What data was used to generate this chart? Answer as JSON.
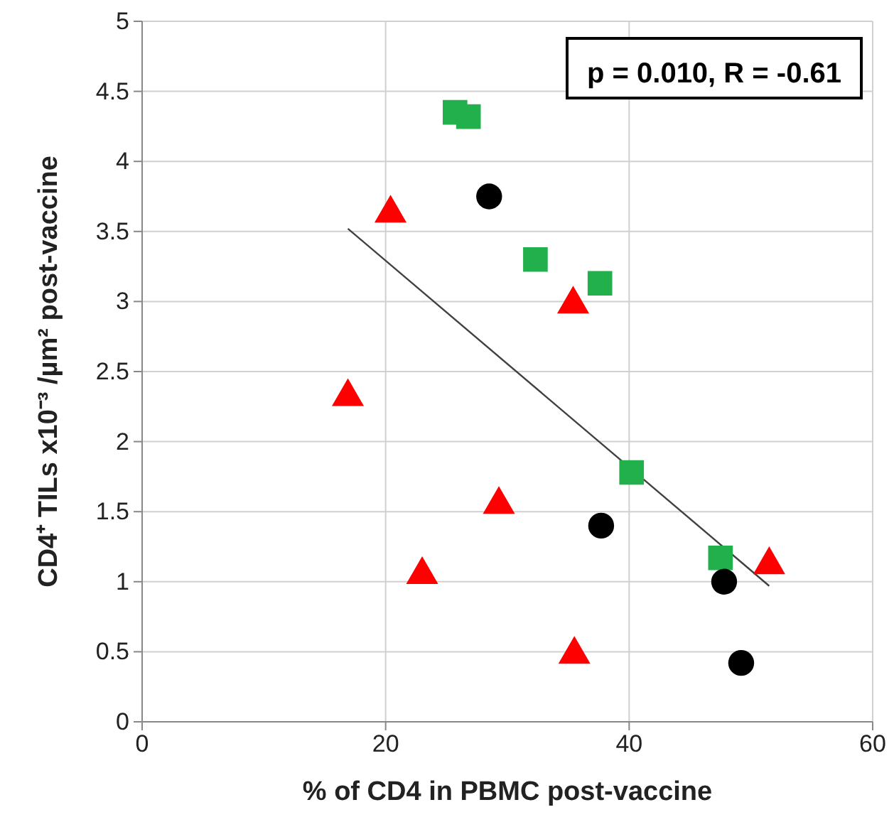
{
  "chart_data": {
    "type": "scatter",
    "xlabel": "% of CD4 in PBMC post-vaccine",
    "ylabel": "CD4⁺ TILs x10⁻³ /µm² post-vaccine",
    "annotations": [
      "p = 0.010, R = -0.61"
    ],
    "xlim": [
      0,
      60
    ],
    "xticks": [
      0,
      20,
      40,
      60
    ],
    "ylim": [
      0,
      5
    ],
    "yticks": [
      0,
      0.5,
      1,
      1.5,
      2,
      2.5,
      3,
      3.5,
      4,
      4.5,
      5
    ],
    "grid": true,
    "series": [
      {
        "type": "line",
        "color": "#404040",
        "marker": "none",
        "x": [
          16.9,
          51.5
        ],
        "values": [
          3.52,
          0.97
        ]
      },
      {
        "color": "#21b04b",
        "marker": "square",
        "x": [
          25.7,
          26.8,
          32.3,
          37.6,
          40.2,
          47.5
        ],
        "values": [
          4.35,
          4.32,
          3.3,
          3.13,
          1.78,
          1.17
        ]
      },
      {
        "color": "#000000",
        "marker": "circle",
        "x": [
          28.5,
          37.7,
          47.8,
          49.2
        ],
        "values": [
          3.75,
          1.4,
          1.0,
          0.42
        ]
      },
      {
        "color": "#ff0000",
        "marker": "triangle",
        "x": [
          20.4,
          16.9,
          35.4,
          29.3,
          23.0,
          35.5,
          51.5
        ],
        "values": [
          3.63,
          2.32,
          2.98,
          1.55,
          1.05,
          0.48,
          1.12
        ]
      }
    ]
  }
}
